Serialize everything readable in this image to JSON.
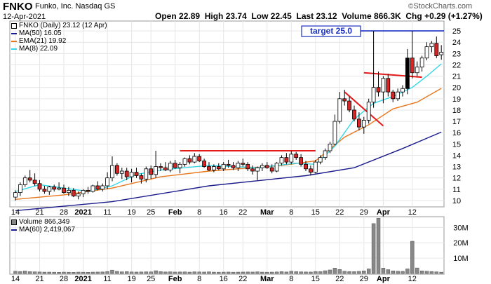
{
  "header": {
    "symbol": "FNKO",
    "company": "Funko, Inc.",
    "exchange": "Nasdaq GS",
    "date": "12-Apr-2021",
    "open_label": "Open",
    "open": "22.89",
    "high_label": "High",
    "high": "23.74",
    "low_label": "Low",
    "low": "22.45",
    "last_label": "Last",
    "last": "23.12",
    "volume_label": "Volume",
    "volume": "866.3K",
    "chg_label": "Chg",
    "chg": "+0.29 (+1.27%)",
    "credit": "StockCharts.com"
  },
  "legend": {
    "price_title": "FNKO (Daily) 23.12 (12 Apr)",
    "ma50": "MA(50) 16.05",
    "ema21": "EMA(21) 19.92",
    "ma8": "MA(8) 22.09",
    "volume_title": "Volume 866,349",
    "ma60": "MA(60) 2,419,067"
  },
  "annotation": {
    "target_label": "target 25.0",
    "target_value": 25.0
  },
  "colors": {
    "up": "#ffffff",
    "down": "#d62728",
    "candle_edge": "#000000",
    "ma50": "#1a1a8c",
    "ema21": "#e8761c",
    "ma8": "#35d6e8",
    "target_line": "#1a2fbf",
    "trendline": "#e31a1a",
    "volume_bar": "#888888",
    "grid": "#e6e6e6"
  },
  "chart_data": {
    "type": "candlestick",
    "price": {
      "ylim": [
        9.5,
        25.5
      ],
      "yticks": [
        10,
        11,
        12,
        13,
        14,
        15,
        16,
        17,
        18,
        19,
        20,
        21,
        22,
        23,
        24,
        25
      ],
      "candles": [
        {
          "o": 10.3,
          "h": 10.9,
          "l": 10.0,
          "c": 10.7
        },
        {
          "o": 10.7,
          "h": 11.6,
          "l": 10.4,
          "c": 11.4
        },
        {
          "o": 11.4,
          "h": 12.2,
          "l": 11.2,
          "c": 12.0
        },
        {
          "o": 12.0,
          "h": 12.7,
          "l": 11.6,
          "c": 11.8
        },
        {
          "o": 11.8,
          "h": 12.4,
          "l": 11.3,
          "c": 11.5
        },
        {
          "o": 11.5,
          "h": 11.8,
          "l": 10.8,
          "c": 11.0
        },
        {
          "o": 11.0,
          "h": 11.3,
          "l": 10.6,
          "c": 10.8
        },
        {
          "o": 10.8,
          "h": 11.3,
          "l": 10.5,
          "c": 11.2
        },
        {
          "o": 11.2,
          "h": 11.4,
          "l": 10.8,
          "c": 11.0
        },
        {
          "o": 11.0,
          "h": 11.6,
          "l": 10.9,
          "c": 11.1
        },
        {
          "o": 11.1,
          "h": 11.4,
          "l": 10.6,
          "c": 10.7
        },
        {
          "o": 10.7,
          "h": 11.2,
          "l": 10.4,
          "c": 10.9
        },
        {
          "o": 10.9,
          "h": 11.1,
          "l": 10.3,
          "c": 10.4
        },
        {
          "o": 10.4,
          "h": 10.8,
          "l": 10.1,
          "c": 10.6
        },
        {
          "o": 10.6,
          "h": 11.0,
          "l": 10.3,
          "c": 10.9
        },
        {
          "o": 10.9,
          "h": 11.2,
          "l": 10.6,
          "c": 10.8
        },
        {
          "o": 10.8,
          "h": 11.4,
          "l": 10.7,
          "c": 11.3
        },
        {
          "o": 11.3,
          "h": 11.7,
          "l": 10.9,
          "c": 11.0
        },
        {
          "o": 11.0,
          "h": 11.5,
          "l": 10.8,
          "c": 11.3
        },
        {
          "o": 11.3,
          "h": 12.5,
          "l": 11.0,
          "c": 12.0
        },
        {
          "o": 12.0,
          "h": 13.9,
          "l": 11.7,
          "c": 13.1
        },
        {
          "o": 13.1,
          "h": 13.3,
          "l": 12.2,
          "c": 12.4
        },
        {
          "o": 12.4,
          "h": 12.9,
          "l": 11.9,
          "c": 12.6
        },
        {
          "o": 12.6,
          "h": 12.9,
          "l": 11.8,
          "c": 12.1
        },
        {
          "o": 12.1,
          "h": 12.8,
          "l": 11.6,
          "c": 12.5
        },
        {
          "o": 12.5,
          "h": 12.9,
          "l": 12.0,
          "c": 12.2
        },
        {
          "o": 12.2,
          "h": 12.4,
          "l": 11.5,
          "c": 11.9
        },
        {
          "o": 11.9,
          "h": 13.0,
          "l": 11.6,
          "c": 12.8
        },
        {
          "o": 12.8,
          "h": 13.1,
          "l": 11.9,
          "c": 12.3
        },
        {
          "o": 12.3,
          "h": 14.4,
          "l": 12.0,
          "c": 13.0
        },
        {
          "o": 13.0,
          "h": 13.3,
          "l": 12.6,
          "c": 12.9
        },
        {
          "o": 12.9,
          "h": 13.4,
          "l": 12.6,
          "c": 12.7
        },
        {
          "o": 12.7,
          "h": 13.5,
          "l": 12.5,
          "c": 13.3
        },
        {
          "o": 13.3,
          "h": 13.6,
          "l": 12.8,
          "c": 12.9
        },
        {
          "o": 12.9,
          "h": 13.4,
          "l": 12.4,
          "c": 13.2
        },
        {
          "o": 13.2,
          "h": 13.8,
          "l": 13.0,
          "c": 13.7
        },
        {
          "o": 13.7,
          "h": 14.0,
          "l": 13.2,
          "c": 13.4
        },
        {
          "o": 13.4,
          "h": 14.2,
          "l": 13.3,
          "c": 13.9
        },
        {
          "o": 13.9,
          "h": 14.1,
          "l": 13.4,
          "c": 13.5
        },
        {
          "o": 13.5,
          "h": 13.7,
          "l": 12.9,
          "c": 13.0
        },
        {
          "o": 13.0,
          "h": 13.4,
          "l": 12.6,
          "c": 12.7
        },
        {
          "o": 12.7,
          "h": 13.2,
          "l": 12.5,
          "c": 13.0
        },
        {
          "o": 13.0,
          "h": 13.3,
          "l": 12.7,
          "c": 12.8
        },
        {
          "o": 12.8,
          "h": 13.4,
          "l": 12.6,
          "c": 13.2
        },
        {
          "o": 13.2,
          "h": 13.6,
          "l": 12.9,
          "c": 13.1
        },
        {
          "o": 13.1,
          "h": 13.4,
          "l": 12.7,
          "c": 12.9
        },
        {
          "o": 12.9,
          "h": 13.5,
          "l": 12.6,
          "c": 13.3
        },
        {
          "o": 13.3,
          "h": 13.7,
          "l": 13.0,
          "c": 13.2
        },
        {
          "o": 13.2,
          "h": 13.4,
          "l": 12.6,
          "c": 12.8
        },
        {
          "o": 12.8,
          "h": 13.1,
          "l": 12.3,
          "c": 12.6
        },
        {
          "o": 12.6,
          "h": 13.0,
          "l": 11.8,
          "c": 12.9
        },
        {
          "o": 12.9,
          "h": 13.3,
          "l": 12.6,
          "c": 13.1
        },
        {
          "o": 13.1,
          "h": 13.4,
          "l": 12.8,
          "c": 12.9
        },
        {
          "o": 12.9,
          "h": 13.2,
          "l": 12.4,
          "c": 12.6
        },
        {
          "o": 12.6,
          "h": 13.4,
          "l": 12.5,
          "c": 13.3
        },
        {
          "o": 13.3,
          "h": 14.0,
          "l": 13.1,
          "c": 13.8
        },
        {
          "o": 13.8,
          "h": 14.2,
          "l": 13.2,
          "c": 13.4
        },
        {
          "o": 13.4,
          "h": 14.4,
          "l": 13.2,
          "c": 14.1
        },
        {
          "o": 14.1,
          "h": 14.3,
          "l": 13.6,
          "c": 13.8
        },
        {
          "o": 13.8,
          "h": 14.1,
          "l": 13.0,
          "c": 13.2
        },
        {
          "o": 13.2,
          "h": 13.5,
          "l": 12.6,
          "c": 12.8
        },
        {
          "o": 12.8,
          "h": 13.1,
          "l": 12.2,
          "c": 12.5
        },
        {
          "o": 12.5,
          "h": 13.6,
          "l": 12.4,
          "c": 13.4
        },
        {
          "o": 13.4,
          "h": 14.0,
          "l": 13.2,
          "c": 13.8
        },
        {
          "o": 13.8,
          "h": 14.6,
          "l": 13.6,
          "c": 14.4
        },
        {
          "o": 14.4,
          "h": 15.2,
          "l": 14.2,
          "c": 15.0
        },
        {
          "o": 15.0,
          "h": 17.6,
          "l": 14.9,
          "c": 17.0
        },
        {
          "o": 17.0,
          "h": 19.6,
          "l": 16.8,
          "c": 19.0
        },
        {
          "o": 19.0,
          "h": 19.8,
          "l": 18.4,
          "c": 18.8
        },
        {
          "o": 18.8,
          "h": 19.2,
          "l": 17.8,
          "c": 18.0
        },
        {
          "o": 18.0,
          "h": 18.4,
          "l": 17.0,
          "c": 17.2
        },
        {
          "o": 17.2,
          "h": 17.8,
          "l": 16.2,
          "c": 16.5
        },
        {
          "o": 16.5,
          "h": 17.4,
          "l": 15.9,
          "c": 17.1
        },
        {
          "o": 17.1,
          "h": 19.0,
          "l": 16.8,
          "c": 18.7
        },
        {
          "o": 18.7,
          "h": 25.0,
          "l": 18.2,
          "c": 20.0
        },
        {
          "o": 20.0,
          "h": 21.4,
          "l": 19.2,
          "c": 19.6
        },
        {
          "o": 19.6,
          "h": 21.0,
          "l": 18.6,
          "c": 20.8
        },
        {
          "o": 20.8,
          "h": 21.2,
          "l": 19.2,
          "c": 19.6
        },
        {
          "o": 19.6,
          "h": 19.8,
          "l": 18.7,
          "c": 19.0
        },
        {
          "o": 19.0,
          "h": 19.9,
          "l": 18.8,
          "c": 19.6
        },
        {
          "o": 19.6,
          "h": 20.2,
          "l": 19.2,
          "c": 19.9
        },
        {
          "o": 19.9,
          "h": 23.4,
          "l": 19.4,
          "c": 22.6
        },
        {
          "o": 22.6,
          "h": 25.0,
          "l": 20.8,
          "c": 21.3
        },
        {
          "o": 21.3,
          "h": 22.3,
          "l": 21.0,
          "c": 21.8
        },
        {
          "o": 21.8,
          "h": 22.8,
          "l": 21.4,
          "c": 22.6
        },
        {
          "o": 22.6,
          "h": 24.0,
          "l": 22.4,
          "c": 23.6
        },
        {
          "o": 23.6,
          "h": 24.1,
          "l": 23.1,
          "c": 23.9
        },
        {
          "o": 23.9,
          "h": 24.5,
          "l": 22.6,
          "c": 22.8
        },
        {
          "o": 22.89,
          "h": 23.74,
          "l": 22.45,
          "c": 23.12
        }
      ]
    },
    "volume": {
      "ylim": [
        0,
        37000000
      ],
      "ytick_labels": [
        "10M",
        "20M",
        "30M"
      ],
      "ytick_values": [
        10000000,
        20000000,
        30000000
      ],
      "values": [
        1500000,
        1300000,
        1600000,
        1200000,
        1100000,
        1000000,
        900000,
        900000,
        850000,
        800000,
        900000,
        850000,
        800000,
        900000,
        850000,
        800000,
        900000,
        950000,
        1000000,
        1300000,
        2200000,
        1400000,
        1100000,
        1200000,
        1000000,
        950000,
        1000000,
        1100000,
        1050000,
        1800000,
        1200000,
        1000000,
        1100000,
        950000,
        1000000,
        1050000,
        900000,
        1100000,
        1000000,
        950000,
        1100000,
        900000,
        850000,
        900000,
        950000,
        850000,
        900000,
        950000,
        1000000,
        950000,
        1100000,
        900000,
        850000,
        900000,
        1000000,
        1200000,
        1000000,
        1500000,
        1200000,
        1100000,
        1000000,
        950000,
        1300000,
        1200000,
        1800000,
        2300000,
        3500000,
        2600000,
        1500000,
        1300000,
        1200000,
        1400000,
        1700000,
        3000000,
        32500000,
        36000000,
        3500000,
        2500000,
        1700000,
        1500000,
        1400000,
        3000000,
        21000000,
        3600000,
        1700000,
        1500000,
        1300000,
        1100000,
        866349
      ]
    },
    "x_labels": [
      {
        "i": 0,
        "t": "14"
      },
      {
        "i": 5,
        "t": "21"
      },
      {
        "i": 10,
        "t": "28"
      },
      {
        "i": 14,
        "t": "2021"
      },
      {
        "i": 19,
        "t": "11"
      },
      {
        "i": 24,
        "t": "19"
      },
      {
        "i": 28,
        "t": "25"
      },
      {
        "i": 33,
        "t": "Feb"
      },
      {
        "i": 38,
        "t": "8"
      },
      {
        "i": 43,
        "t": "16"
      },
      {
        "i": 47,
        "t": "22"
      },
      {
        "i": 52,
        "t": "Mar"
      },
      {
        "i": 57,
        "t": "8"
      },
      {
        "i": 62,
        "t": "15"
      },
      {
        "i": 67,
        "t": "22"
      },
      {
        "i": 72,
        "t": "29"
      },
      {
        "i": 76,
        "t": "Apr"
      },
      {
        "i": 82,
        "t": "12"
      }
    ],
    "moving_averages": {
      "ma50": [
        [
          0,
          9.1
        ],
        [
          20,
          9.9
        ],
        [
          40,
          11.3
        ],
        [
          60,
          12.2
        ],
        [
          70,
          12.9
        ],
        [
          80,
          14.6
        ],
        [
          88,
          16.05
        ]
      ],
      "ema21": [
        [
          0,
          10.1
        ],
        [
          10,
          10.5
        ],
        [
          20,
          11.1
        ],
        [
          30,
          12.1
        ],
        [
          40,
          12.6
        ],
        [
          55,
          13.1
        ],
        [
          62,
          13.5
        ],
        [
          68,
          15.6
        ],
        [
          73,
          16.7
        ],
        [
          78,
          18.1
        ],
        [
          83,
          18.7
        ],
        [
          88,
          19.92
        ]
      ],
      "ma8": [
        [
          0,
          10.8
        ],
        [
          5,
          11.4
        ],
        [
          10,
          11.1
        ],
        [
          15,
          10.8
        ],
        [
          20,
          11.3
        ],
        [
          25,
          12.3
        ],
        [
          30,
          12.7
        ],
        [
          40,
          13.1
        ],
        [
          50,
          12.9
        ],
        [
          58,
          13.3
        ],
        [
          62,
          13.2
        ],
        [
          66,
          14.8
        ],
        [
          70,
          17.2
        ],
        [
          74,
          18.6
        ],
        [
          78,
          19.2
        ],
        [
          82,
          20.0
        ],
        [
          85,
          21.0
        ],
        [
          88,
          22.09
        ]
      ]
    },
    "trendlines": [
      {
        "from": [
          34,
          14.4
        ],
        "to": [
          62,
          14.4
        ]
      },
      {
        "from": [
          68,
          19.6
        ],
        "to": [
          76,
          16.6
        ]
      },
      {
        "from": [
          72,
          21.3
        ],
        "to": [
          84,
          20.9
        ]
      }
    ]
  }
}
